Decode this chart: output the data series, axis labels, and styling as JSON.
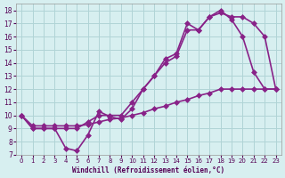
{
  "xlabel": "Windchill (Refroidissement éolien,°C)",
  "ylabel": "",
  "xlim": [
    -0.5,
    23.5
  ],
  "ylim": [
    7,
    18.5
  ],
  "yticks": [
    7,
    8,
    9,
    10,
    11,
    12,
    13,
    14,
    15,
    16,
    17,
    18
  ],
  "xticks": [
    0,
    1,
    2,
    3,
    4,
    5,
    6,
    7,
    8,
    9,
    10,
    11,
    12,
    13,
    14,
    15,
    16,
    17,
    18,
    19,
    20,
    21,
    22,
    23
  ],
  "bg_color": "#d7eff0",
  "grid_color": "#b0d4d6",
  "line_color": "#882288",
  "line1_x": [
    0,
    1,
    2,
    3,
    4,
    5,
    6,
    7,
    8,
    9,
    10,
    11,
    12,
    13,
    14,
    15,
    16,
    17,
    18,
    19,
    20,
    21,
    22,
    23
  ],
  "line1_y": [
    10.0,
    9.0,
    9.0,
    9.0,
    7.5,
    7.3,
    8.5,
    10.3,
    9.9,
    9.7,
    10.5,
    12.0,
    13.0,
    14.3,
    14.7,
    17.0,
    16.5,
    17.5,
    18.0,
    17.3,
    16.0,
    13.3,
    12.0,
    12.0
  ],
  "line2_x": [
    0,
    1,
    2,
    3,
    4,
    5,
    6,
    7,
    8,
    9,
    10,
    11,
    12,
    13,
    14,
    15,
    16,
    17,
    18,
    19,
    20,
    21,
    22,
    23
  ],
  "line2_y": [
    10.0,
    9.0,
    9.0,
    9.0,
    9.0,
    9.0,
    9.5,
    10.0,
    10.0,
    10.0,
    11.0,
    12.0,
    13.0,
    14.0,
    14.5,
    16.5,
    16.5,
    17.5,
    17.8,
    17.5,
    17.5,
    17.0,
    16.0,
    12.0
  ],
  "line3_x": [
    0,
    1,
    2,
    3,
    4,
    5,
    6,
    7,
    8,
    9,
    10,
    11,
    12,
    13,
    14,
    15,
    16,
    17,
    18,
    19,
    20,
    21,
    22,
    23
  ],
  "line3_y": [
    10.0,
    9.2,
    9.2,
    9.2,
    9.2,
    9.2,
    9.3,
    9.5,
    9.7,
    9.8,
    10.0,
    10.2,
    10.5,
    10.7,
    11.0,
    11.2,
    11.5,
    11.7,
    12.0,
    12.0,
    12.0,
    12.0,
    12.0,
    12.0
  ],
  "marker": "D",
  "markersize": 3,
  "linewidth": 1.2
}
